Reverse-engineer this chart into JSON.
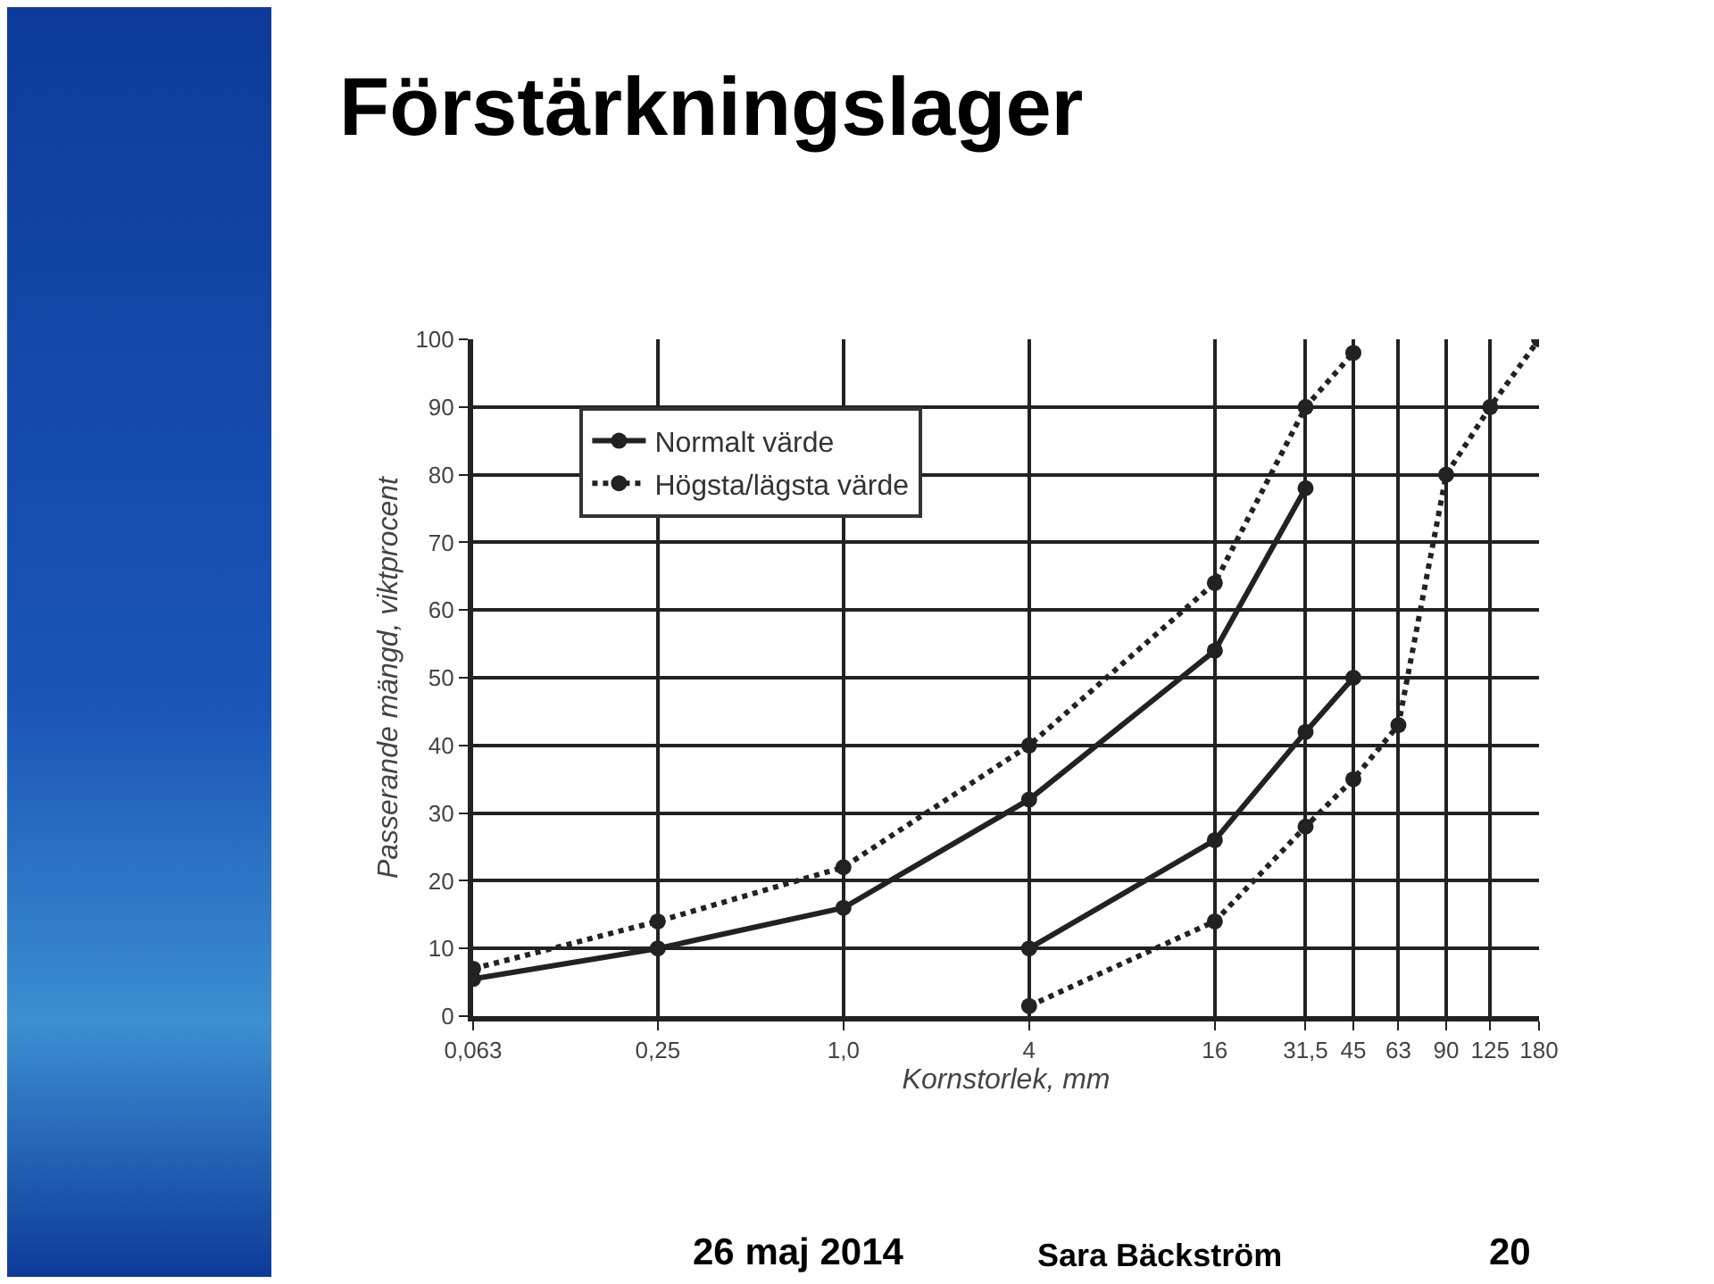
{
  "chart_data": {
    "type": "line",
    "title": "Förstärkningslager",
    "xlabel": "Kornstorlek, mm",
    "ylabel": "Passerande mängd, viktprocent",
    "log": "x",
    "grid": true,
    "legend": "top left",
    "marker": "circle",
    "xlim": [
      0.063,
      180
    ],
    "ylim": [
      0,
      100
    ],
    "xticks": [
      {
        "value": 0.063,
        "label": "0,063"
      },
      {
        "value": 0.25,
        "label": "0,25"
      },
      {
        "value": 1,
        "label": "1,0"
      },
      4,
      16,
      {
        "value": 31.5,
        "label": "31,5"
      },
      45,
      63,
      90,
      125,
      180
    ],
    "yticks": [
      0,
      10,
      20,
      30,
      40,
      50,
      60,
      70,
      80,
      90,
      100
    ],
    "series": [
      {
        "name": "Normalt värde",
        "color": "#222222",
        "line_style": "solid",
        "x": [
          0.063,
          0.25,
          1,
          4,
          16,
          31.5
        ],
        "values": [
          5.5,
          10,
          16,
          32,
          54,
          78
        ]
      },
      {
        "name": "Högsta/lägsta värde",
        "color": "#222222",
        "line_style": "dotted",
        "x": [
          0.063,
          0.25,
          1,
          4,
          16,
          31.5,
          45
        ],
        "values": [
          7,
          14,
          22,
          40,
          64,
          90,
          98
        ]
      },
      {
        "color": "#222222",
        "line_style": "solid",
        "x": [
          4,
          16,
          31.5,
          45
        ],
        "values": [
          10,
          26,
          42,
          50
        ]
      },
      {
        "color": "#222222",
        "line_style": "dotted",
        "x": [
          4,
          16,
          31.5,
          45,
          63,
          90,
          125,
          180
        ],
        "values": [
          1.5,
          14,
          28,
          35,
          43,
          80,
          90,
          100
        ]
      }
    ],
    "annotations": [
      "26 maj 2014",
      "Sara Bäckström",
      "20"
    ]
  }
}
